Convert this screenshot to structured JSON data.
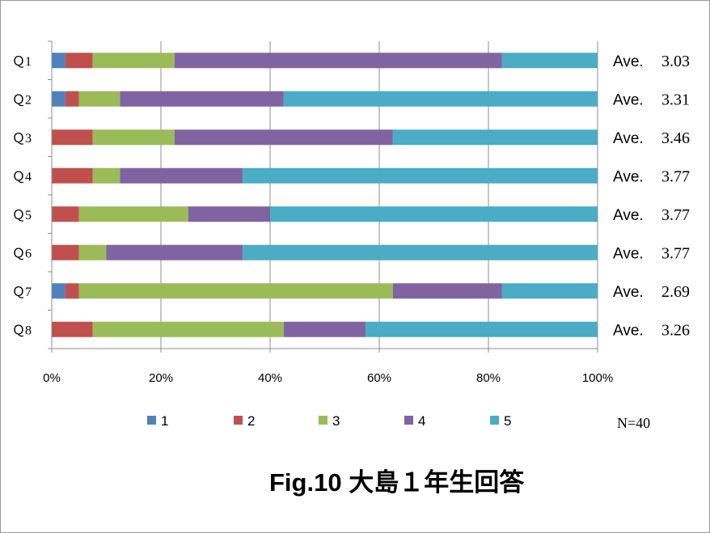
{
  "chart_data": {
    "type": "bar",
    "orientation": "horizontal",
    "stacked": "percent",
    "title": "Fig.10 大島１年生回答",
    "categories": [
      "Ｑ1",
      "Ｑ2",
      "Ｑ3",
      "Ｑ4",
      "Ｑ5",
      "Ｑ6",
      "Ｑ7",
      "Ｑ8"
    ],
    "series": [
      {
        "name": "1",
        "color": "#4f81bd",
        "values": [
          2.5,
          2.5,
          0,
          0,
          0,
          0,
          2.5,
          0
        ]
      },
      {
        "name": "2",
        "color": "#c0504d",
        "values": [
          5,
          2.5,
          7.5,
          7.5,
          5,
          5,
          2.5,
          7.5
        ]
      },
      {
        "name": "3",
        "color": "#9bbb59",
        "values": [
          15,
          7.5,
          15,
          5,
          20,
          5,
          57.5,
          35
        ]
      },
      {
        "name": "4",
        "color": "#8064a2",
        "values": [
          60,
          30,
          40,
          22.5,
          15,
          25,
          20,
          15
        ]
      },
      {
        "name": "5",
        "color": "#4bacc6",
        "values": [
          17.5,
          57.5,
          37.5,
          65,
          60,
          65,
          17.5,
          42.5
        ]
      }
    ],
    "xlim": [
      0,
      100
    ],
    "x_ticks": [
      "0%",
      "20%",
      "40%",
      "60%",
      "80%",
      "100%"
    ],
    "grid": true,
    "legend_position": "bottom",
    "averages": {
      "label": "Ave.",
      "values": [
        "3.03",
        "3.31",
        "3.46",
        "3.77",
        "3.77",
        "3.77",
        "2.69",
        "3.26"
      ]
    },
    "sample_size": "N=40"
  }
}
